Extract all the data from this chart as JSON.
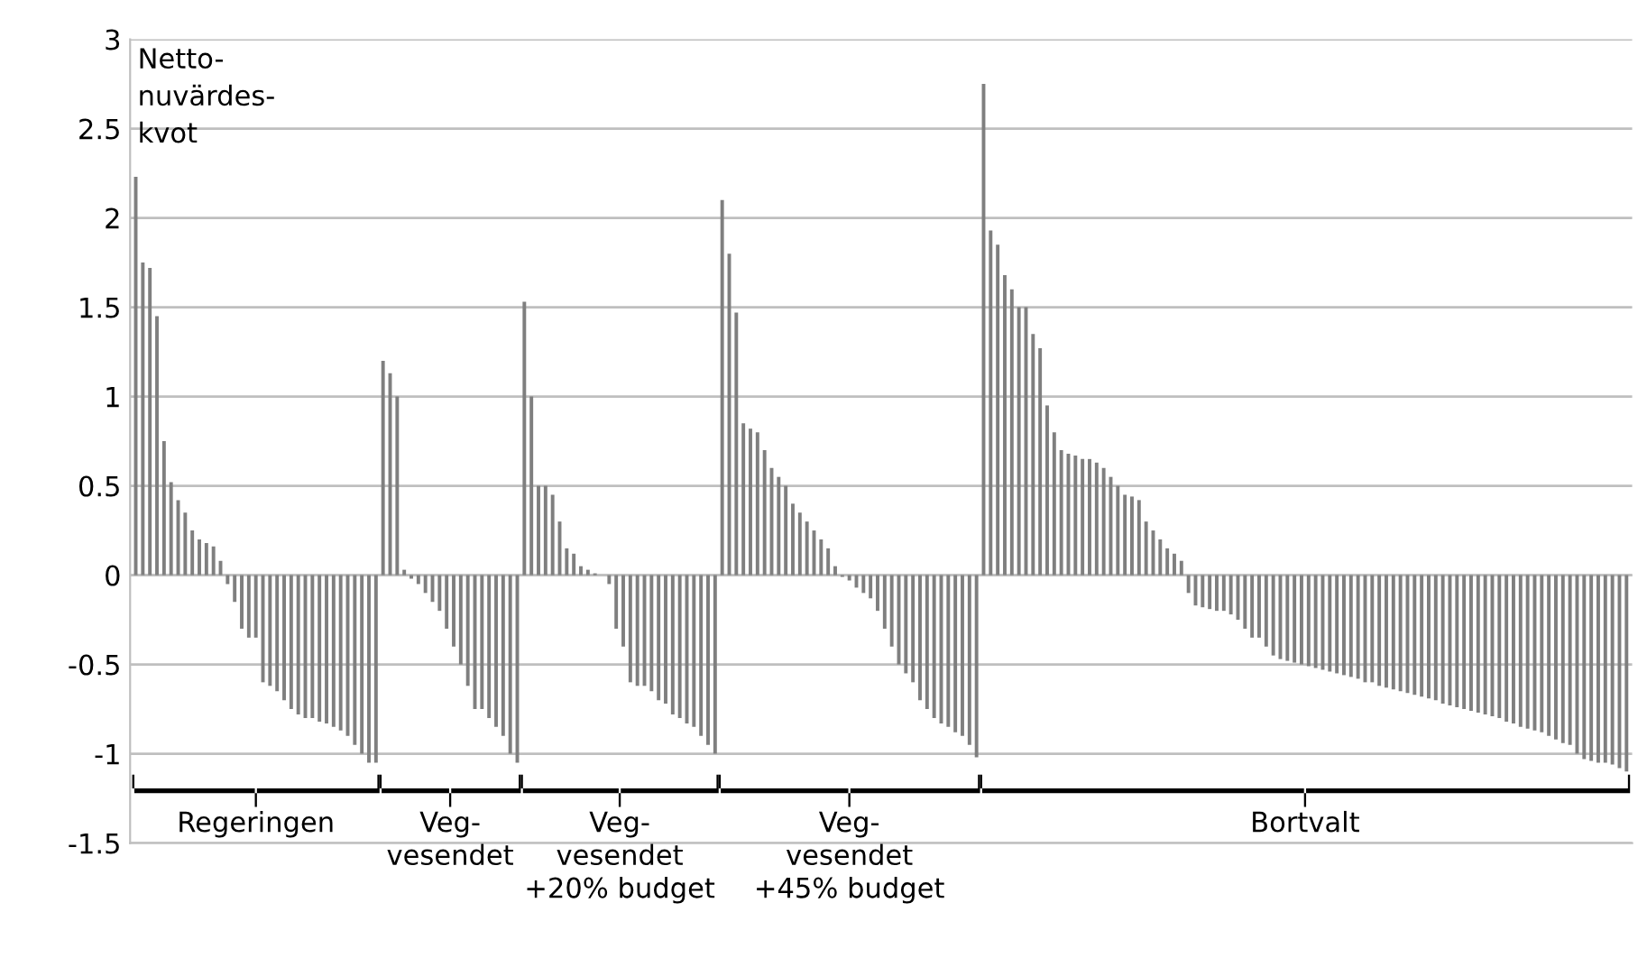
{
  "chart_data": {
    "type": "bar",
    "ylabel": "Netto-\nnuvärdes-\nkvot",
    "categories": [
      null,
      null,
      null,
      null,
      null,
      null,
      null,
      null,
      null,
      null,
      null,
      null,
      null,
      null,
      null,
      null,
      null,
      null,
      null,
      null,
      null,
      null,
      null,
      null,
      null,
      null,
      null,
      null,
      null,
      null,
      null,
      null,
      null,
      null,
      null,
      null,
      null,
      null,
      null,
      null,
      null,
      null,
      null,
      null,
      null,
      null,
      null,
      null,
      null,
      null,
      null,
      null,
      null,
      null,
      null,
      null,
      null,
      null,
      null,
      null,
      null,
      null,
      null,
      null,
      null,
      null,
      null,
      null,
      null,
      null,
      null,
      null,
      null,
      null,
      null,
      null,
      null,
      null,
      null,
      null,
      null,
      null,
      null,
      null,
      null,
      null,
      null,
      null,
      null,
      null,
      null,
      null,
      null,
      null,
      null,
      null,
      null,
      null,
      null,
      null,
      null,
      null,
      null,
      null,
      null,
      null,
      null,
      null,
      null,
      null,
      null,
      null,
      null,
      null,
      null,
      null,
      null,
      null,
      null,
      null,
      null,
      null,
      null,
      null,
      null,
      null,
      null,
      null,
      null,
      null,
      null,
      null,
      null,
      null,
      null,
      null,
      null,
      null,
      null,
      null,
      null,
      null,
      null,
      null,
      null,
      null,
      null,
      null,
      null,
      null,
      null,
      null,
      null,
      null,
      null,
      null,
      null,
      null,
      null,
      null,
      null,
      null,
      null,
      null,
      null,
      null,
      null,
      null,
      null,
      null,
      null,
      null,
      null,
      null,
      null,
      null,
      null,
      null,
      null,
      null,
      null,
      null,
      null,
      null,
      null,
      null,
      null,
      null,
      null,
      null,
      null,
      null,
      null,
      null,
      null,
      null,
      null,
      null,
      null,
      null,
      null,
      null,
      null,
      null,
      null,
      null,
      null,
      null,
      null,
      null,
      null,
      null
    ],
    "series": [
      {
        "color": "#7f7f7f",
        "values": [
          2.23,
          1.75,
          1.72,
          1.45,
          0.75,
          0.52,
          0.42,
          0.35,
          0.25,
          0.2,
          0.18,
          0.16,
          0.08,
          -0.05,
          -0.15,
          -0.3,
          -0.35,
          -0.35,
          -0.6,
          -0.62,
          -0.65,
          -0.7,
          -0.75,
          -0.78,
          -0.8,
          -0.8,
          -0.82,
          -0.83,
          -0.85,
          -0.87,
          -0.9,
          -0.95,
          -1.0,
          -1.05,
          -1.05,
          null,
          null,
          null,
          null,
          null,
          null,
          null,
          null,
          null,
          null,
          null,
          null,
          null,
          null,
          null,
          null,
          null,
          null,
          null,
          null,
          null,
          null,
          null,
          null,
          null,
          null,
          null,
          null,
          null,
          null,
          null,
          null,
          null,
          null,
          null,
          null,
          null,
          null,
          null,
          null,
          null,
          null,
          null,
          null,
          null,
          null,
          null,
          null,
          null,
          null,
          null,
          null,
          null,
          null,
          null,
          null,
          null,
          null,
          null,
          null,
          null,
          null,
          null,
          null,
          null,
          null,
          null,
          null,
          null,
          null,
          null,
          null,
          null,
          null,
          null,
          null,
          null,
          null,
          null,
          null,
          null,
          null,
          null,
          null,
          null,
          null,
          null,
          null,
          null,
          null,
          null,
          null,
          null,
          null,
          null,
          null,
          null,
          null,
          null,
          null,
          null,
          null,
          null,
          null,
          null,
          null,
          null,
          null,
          null,
          null,
          null,
          null,
          null,
          null,
          null,
          null,
          null,
          null,
          null,
          null,
          null,
          null,
          null,
          null,
          null,
          null,
          null,
          null,
          null,
          null,
          null,
          null,
          null,
          null,
          null,
          null,
          null,
          null,
          null,
          null,
          null,
          null,
          null,
          null,
          null,
          null,
          null,
          null,
          null,
          null,
          null,
          null,
          null,
          null,
          null,
          null,
          null,
          null,
          null,
          null,
          null,
          null,
          null,
          null,
          null,
          null,
          null,
          null,
          null,
          null,
          null,
          null,
          null,
          null,
          null,
          null,
          null
        ]
      },
      {
        "color": "#7f7f7f",
        "values": [
          null,
          null,
          null,
          null,
          null,
          null,
          null,
          null,
          null,
          null,
          null,
          null,
          null,
          null,
          null,
          null,
          null,
          null,
          null,
          null,
          null,
          null,
          null,
          null,
          null,
          null,
          null,
          null,
          null,
          null,
          null,
          null,
          null,
          null,
          null,
          1.2,
          1.13,
          1.0,
          0.03,
          -0.02,
          -0.05,
          -0.1,
          -0.15,
          -0.2,
          -0.3,
          -0.4,
          -0.5,
          -0.62,
          -0.75,
          -0.75,
          -0.8,
          -0.85,
          -0.9,
          -1.0,
          -1.05,
          null,
          null,
          null,
          null,
          null,
          null,
          null,
          null,
          null,
          null,
          null,
          null,
          null,
          null,
          null,
          null,
          null,
          null,
          null,
          null,
          null,
          null,
          null,
          null,
          null,
          null,
          null,
          null,
          null,
          null,
          null,
          null,
          null,
          null,
          null,
          null,
          null,
          null,
          null,
          null,
          null,
          null,
          null,
          null,
          null,
          null,
          null,
          null,
          null,
          null,
          null,
          null,
          null,
          null,
          null,
          null,
          null,
          null,
          null,
          null,
          null,
          null,
          null,
          null,
          null,
          null,
          null,
          null,
          null,
          null,
          null,
          null,
          null,
          null,
          null,
          null,
          null,
          null,
          null,
          null,
          null,
          null,
          null,
          null,
          null,
          null,
          null,
          null,
          null,
          null,
          null,
          null,
          null,
          null,
          null,
          null,
          null,
          null,
          null,
          null,
          null,
          null,
          null,
          null,
          null,
          null,
          null,
          null,
          null,
          null,
          null,
          null,
          null,
          null,
          null,
          null,
          null,
          null,
          null,
          null,
          null,
          null,
          null,
          null,
          null,
          null,
          null,
          null,
          null,
          null,
          null,
          null,
          null,
          null,
          null,
          null,
          null,
          null,
          null,
          null,
          null,
          null,
          null,
          null,
          null,
          null,
          null,
          null,
          null,
          null,
          null,
          null,
          null,
          null,
          null,
          null,
          null
        ]
      },
      {
        "color": "#7f7f7f",
        "values": [
          null,
          null,
          null,
          null,
          null,
          null,
          null,
          null,
          null,
          null,
          null,
          null,
          null,
          null,
          null,
          null,
          null,
          null,
          null,
          null,
          null,
          null,
          null,
          null,
          null,
          null,
          null,
          null,
          null,
          null,
          null,
          null,
          null,
          null,
          null,
          null,
          null,
          null,
          null,
          null,
          null,
          null,
          null,
          null,
          null,
          null,
          null,
          null,
          null,
          null,
          null,
          null,
          null,
          null,
          null,
          1.53,
          1.0,
          0.5,
          0.5,
          0.45,
          0.3,
          0.15,
          0.12,
          0.05,
          0.03,
          0.01,
          0,
          -0.05,
          -0.3,
          -0.4,
          -0.6,
          -0.62,
          -0.62,
          -0.65,
          -0.7,
          -0.72,
          -0.78,
          -0.8,
          -0.83,
          -0.85,
          -0.9,
          -0.95,
          -1.0,
          null,
          null,
          null,
          null,
          null,
          null,
          null,
          null,
          null,
          null,
          null,
          null,
          null,
          null,
          null,
          null,
          null,
          null,
          null,
          null,
          null,
          null,
          null,
          null,
          null,
          null,
          null,
          null,
          null,
          null,
          null,
          null,
          null,
          null,
          null,
          null,
          null,
          null,
          null,
          null,
          null,
          null,
          null,
          null,
          null,
          null,
          null,
          null,
          null,
          null,
          null,
          null,
          null,
          null,
          null,
          null,
          null,
          null,
          null,
          null,
          null,
          null,
          null,
          null,
          null,
          null,
          null,
          null,
          null,
          null,
          null,
          null,
          null,
          null,
          null,
          null,
          null,
          null,
          null,
          null,
          null,
          null,
          null,
          null,
          null,
          null,
          null,
          null,
          null,
          null,
          null,
          null,
          null,
          null,
          null,
          null,
          null,
          null,
          null,
          null,
          null,
          null,
          null,
          null,
          null,
          null,
          null,
          null,
          null,
          null,
          null,
          null,
          null,
          null,
          null,
          null,
          null,
          null,
          null,
          null,
          null,
          null,
          null,
          null,
          null,
          null,
          null,
          null,
          null
        ]
      },
      {
        "color": "#7f7f7f",
        "values": [
          null,
          null,
          null,
          null,
          null,
          null,
          null,
          null,
          null,
          null,
          null,
          null,
          null,
          null,
          null,
          null,
          null,
          null,
          null,
          null,
          null,
          null,
          null,
          null,
          null,
          null,
          null,
          null,
          null,
          null,
          null,
          null,
          null,
          null,
          null,
          null,
          null,
          null,
          null,
          null,
          null,
          null,
          null,
          null,
          null,
          null,
          null,
          null,
          null,
          null,
          null,
          null,
          null,
          null,
          null,
          null,
          null,
          null,
          null,
          null,
          null,
          null,
          null,
          null,
          null,
          null,
          null,
          null,
          null,
          null,
          null,
          null,
          null,
          null,
          null,
          null,
          null,
          null,
          null,
          null,
          null,
          null,
          null,
          2.1,
          1.8,
          1.47,
          0.85,
          0.82,
          0.8,
          0.7,
          0.6,
          0.55,
          0.5,
          0.4,
          0.35,
          0.3,
          0.25,
          0.2,
          0.15,
          0.05,
          -0.01,
          -0.03,
          -0.07,
          -0.1,
          -0.13,
          -0.2,
          -0.3,
          -0.4,
          -0.5,
          -0.55,
          -0.6,
          -0.7,
          -0.75,
          -0.8,
          -0.83,
          -0.85,
          -0.88,
          -0.9,
          -0.95,
          -1.02,
          null,
          null,
          null,
          null,
          null,
          null,
          null,
          null,
          null,
          null,
          null,
          null,
          null,
          null,
          null,
          null,
          null,
          null,
          null,
          null,
          null,
          null,
          null,
          null,
          null,
          null,
          null,
          null,
          null,
          null,
          null,
          null,
          null,
          null,
          null,
          null,
          null,
          null,
          null,
          null,
          null,
          null,
          null,
          null,
          null,
          null,
          null,
          null,
          null,
          null,
          null,
          null,
          null,
          null,
          null,
          null,
          null,
          null,
          null,
          null,
          null,
          null,
          null,
          null,
          null,
          null,
          null,
          null,
          null,
          null,
          null,
          null,
          null,
          null,
          null,
          null,
          null,
          null,
          null,
          null,
          null,
          null,
          null,
          null,
          null,
          null,
          null,
          null,
          null,
          null,
          null,
          null
        ]
      },
      {
        "color": "#7f7f7f",
        "values": [
          null,
          null,
          null,
          null,
          null,
          null,
          null,
          null,
          null,
          null,
          null,
          null,
          null,
          null,
          null,
          null,
          null,
          null,
          null,
          null,
          null,
          null,
          null,
          null,
          null,
          null,
          null,
          null,
          null,
          null,
          null,
          null,
          null,
          null,
          null,
          null,
          null,
          null,
          null,
          null,
          null,
          null,
          null,
          null,
          null,
          null,
          null,
          null,
          null,
          null,
          null,
          null,
          null,
          null,
          null,
          null,
          null,
          null,
          null,
          null,
          null,
          null,
          null,
          null,
          null,
          null,
          null,
          null,
          null,
          null,
          null,
          null,
          null,
          null,
          null,
          null,
          null,
          null,
          null,
          null,
          null,
          null,
          null,
          null,
          null,
          null,
          null,
          null,
          null,
          null,
          null,
          null,
          null,
          null,
          null,
          null,
          null,
          null,
          null,
          null,
          null,
          null,
          null,
          null,
          null,
          null,
          null,
          null,
          null,
          null,
          null,
          null,
          null,
          null,
          null,
          null,
          null,
          null,
          null,
          null,
          2.75,
          1.93,
          1.85,
          1.68,
          1.6,
          1.5,
          1.5,
          1.35,
          1.27,
          0.95,
          0.8,
          0.7,
          0.68,
          0.67,
          0.65,
          0.65,
          0.63,
          0.6,
          0.55,
          0.5,
          0.45,
          0.44,
          0.42,
          0.3,
          0.25,
          0.2,
          0.15,
          0.12,
          0.08,
          -0.1,
          -0.17,
          -0.18,
          -0.19,
          -0.2,
          -0.2,
          -0.22,
          -0.25,
          -0.3,
          -0.35,
          -0.35,
          -0.4,
          -0.45,
          -0.47,
          -0.48,
          -0.49,
          -0.5,
          -0.51,
          -0.52,
          -0.53,
          -0.54,
          -0.55,
          -0.56,
          -0.57,
          -0.58,
          -0.6,
          -0.6,
          -0.62,
          -0.63,
          -0.64,
          -0.65,
          -0.66,
          -0.67,
          -0.68,
          -0.69,
          -0.7,
          -0.72,
          -0.73,
          -0.74,
          -0.75,
          -0.76,
          -0.77,
          -0.78,
          -0.79,
          -0.8,
          -0.82,
          -0.83,
          -0.85,
          -0.86,
          -0.87,
          -0.88,
          -0.9,
          -0.92,
          -0.94,
          -0.95,
          -1.0,
          -1.03,
          -1.04,
          -1.05,
          -1.05,
          -1.06,
          -1.08,
          -1.1
        ]
      }
    ],
    "annotations": [
      "Regeringen",
      "Veg-\nvesendet",
      "Veg-\nvesendet\n+20% budget",
      "Veg-\nvesendet\n+45% budget",
      "Bortvalt"
    ],
    "ylim": [
      -1.5,
      3
    ],
    "yticks": [
      -1.5,
      -1,
      -0.5,
      0,
      0.5,
      1,
      1.5,
      2,
      2.5,
      3
    ],
    "grid": "y",
    "tick_labels": "y"
  }
}
